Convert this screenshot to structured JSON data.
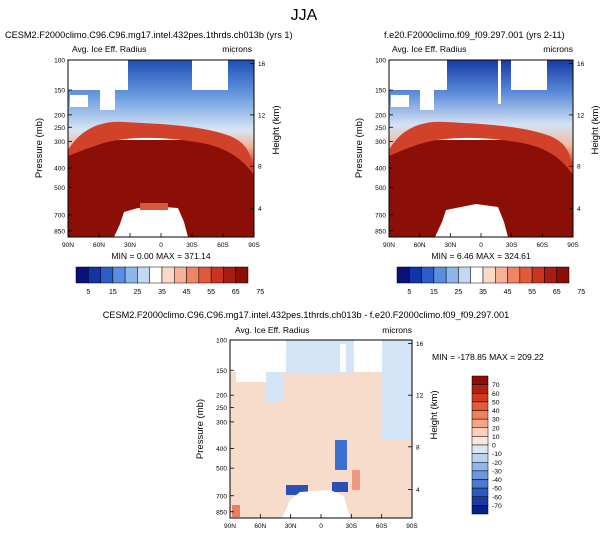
{
  "page_title": "JJA",
  "colors": {
    "dark_red": "#8b0f07",
    "white": "#ffffff",
    "blue_deep": "#0b1f9a",
    "diff_bg": "#f6d9c6",
    "diff_blue": "#cfe3f6"
  },
  "chart_data": [
    {
      "type": "heatmap",
      "title": "CESM2.F2000climo.C96.C96.mg17.intel.432pes.1thrds.ch013b (yrs 1)",
      "subtitle": "Avg. Ice Eff. Radius",
      "units": "microns",
      "ylabel": "Pressure (mb)",
      "y2label": "Height (km)",
      "x_tick_labels": [
        "90N",
        "60N",
        "30N",
        "0",
        "30S",
        "60S",
        "90S"
      ],
      "y_tick_labels": [
        "100",
        "150",
        "200",
        "250",
        "300",
        "400",
        "500",
        "700",
        "850"
      ],
      "y2_tick_labels": [
        "16",
        "12",
        "8",
        "4"
      ],
      "stats": "MIN =   0.00  MAX = 371.14",
      "colorbar_labels": [
        "5",
        "15",
        "25",
        "35",
        "45",
        "55",
        "65",
        "75"
      ],
      "ylim": [
        100,
        1000
      ],
      "xlim": [
        90,
        -90
      ]
    },
    {
      "type": "heatmap",
      "title": "f.e20.F2000climo.f09_f09.297.001 (yrs 2-11)",
      "subtitle": "Avg. Ice Eff. Radius",
      "units": "microns",
      "ylabel": "Pressure (mb)",
      "y2label": "Height (km)",
      "x_tick_labels": [
        "90N",
        "60N",
        "30N",
        "0",
        "30S",
        "60S",
        "90S"
      ],
      "y_tick_labels": [
        "100",
        "150",
        "200",
        "250",
        "300",
        "400",
        "500",
        "700",
        "850"
      ],
      "y2_tick_labels": [
        "16",
        "12",
        "8",
        "4"
      ],
      "stats": "MIN =   6.46  MAX = 324.61",
      "colorbar_labels": [
        "5",
        "15",
        "25",
        "35",
        "45",
        "55",
        "65",
        "75"
      ],
      "ylim": [
        100,
        1000
      ],
      "xlim": [
        90,
        -90
      ]
    },
    {
      "type": "heatmap",
      "title": "CESM2.F2000climo.C96.C96.mg17.intel.432pes.1thrds.ch013b - f.e20.F2000climo.f09_f09.297.001",
      "subtitle": "Avg. Ice Eff. Radius",
      "units": "microns",
      "ylabel": "Pressure (mb)",
      "y2label": "Height (km)",
      "x_tick_labels": [
        "90N",
        "60N",
        "30N",
        "0",
        "30S",
        "60S",
        "90S"
      ],
      "y_tick_labels": [
        "100",
        "150",
        "200",
        "250",
        "300",
        "400",
        "500",
        "700",
        "850"
      ],
      "y2_tick_labels": [
        "16",
        "12",
        "8",
        "4"
      ],
      "stats": "MIN = -178.85  MAX = 209.22",
      "colorbar_labels": [
        "70",
        "60",
        "50",
        "40",
        "30",
        "20",
        "10",
        "0",
        "-10",
        "-20",
        "-30",
        "-40",
        "-50",
        "-60",
        "-70"
      ],
      "ylim": [
        100,
        1000
      ],
      "xlim": [
        90,
        -90
      ]
    }
  ]
}
